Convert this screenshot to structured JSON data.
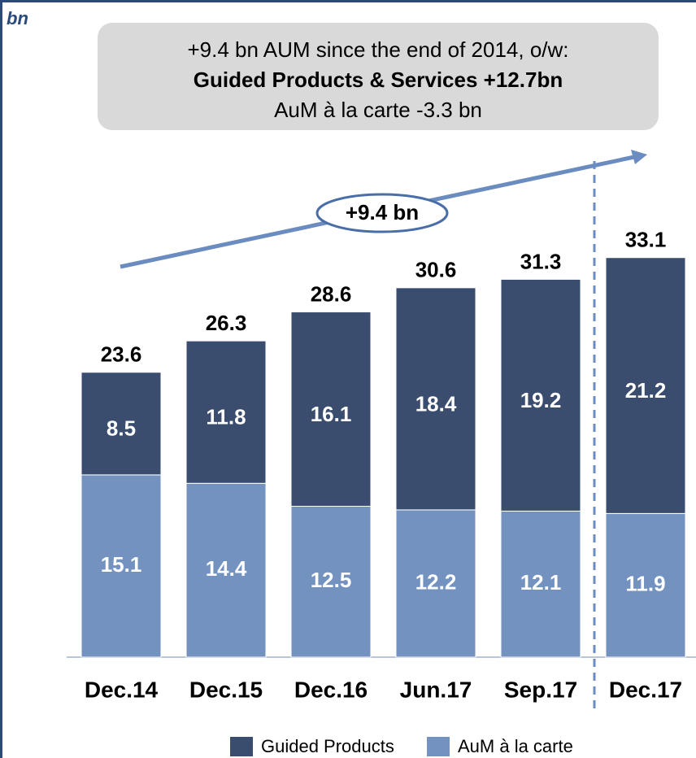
{
  "chart_data": {
    "type": "stacked_bar",
    "unit_label": "bn",
    "annotation_lines": [
      "+9.4 bn AUM since the end of 2014, o/w:",
      "Guided Products & Services +12.7bn",
      "AuM à la carte -3.3 bn"
    ],
    "arrow_label": "+9.4 bn",
    "categories": [
      "Dec.14",
      "Dec.15",
      "Dec.16",
      "Jun.17",
      "Sep.17",
      "Dec.17"
    ],
    "series": [
      {
        "name": "Guided Products",
        "color": "#3a4d6e",
        "values": [
          8.5,
          11.8,
          16.1,
          18.4,
          19.2,
          21.2
        ]
      },
      {
        "name": "AuM à la carte",
        "color": "#7392bf",
        "values": [
          15.1,
          14.4,
          12.5,
          12.2,
          12.1,
          11.9
        ]
      }
    ],
    "totals": [
      23.6,
      26.3,
      28.6,
      30.6,
      31.3,
      33.1
    ],
    "ylim": [
      0,
      38
    ]
  }
}
